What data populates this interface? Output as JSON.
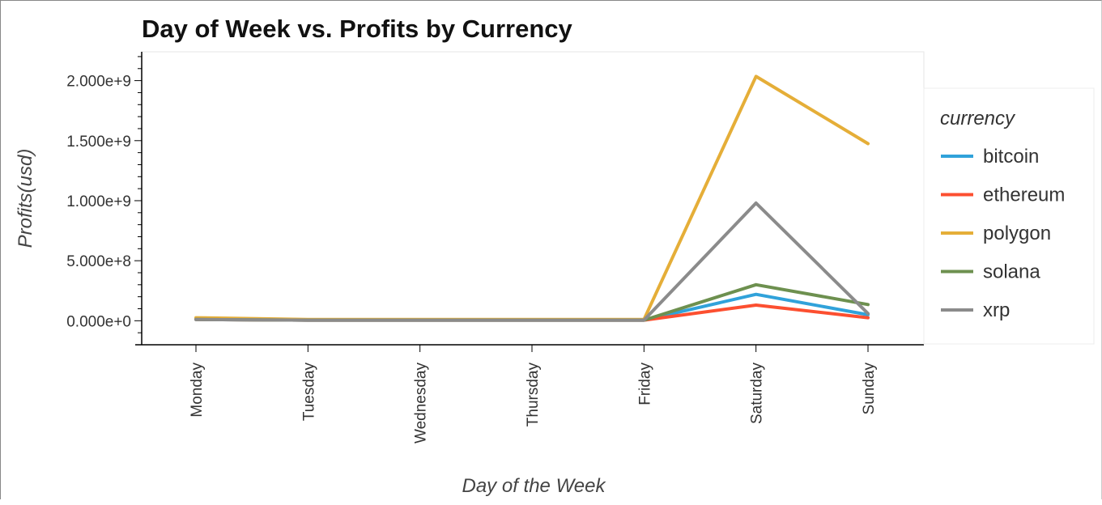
{
  "chart_data": {
    "type": "line",
    "title": "Day of Week vs. Profits by Currency",
    "xlabel": "Day of the Week",
    "ylabel": "Profits(usd)",
    "categories": [
      "Monday",
      "Tuesday",
      "Wednesday",
      "Thursday",
      "Friday",
      "Saturday",
      "Sunday"
    ],
    "ylim": [
      -200000000,
      2240000000
    ],
    "yticks": [
      0,
      500000000,
      1000000000,
      1500000000,
      2000000000
    ],
    "ytick_labels": [
      "0.000e+0",
      "5.000e+8",
      "1.000e+9",
      "1.500e+9",
      "2.000e+9"
    ],
    "legend": {
      "title": "currency",
      "placement": "right"
    },
    "series": [
      {
        "name": "bitcoin",
        "color": "#30a2da",
        "values": [
          10000000,
          5000000,
          5000000,
          5000000,
          5000000,
          220000000,
          50000000
        ]
      },
      {
        "name": "ethereum",
        "color": "#fc4f30",
        "values": [
          10000000,
          5000000,
          5000000,
          5000000,
          5000000,
          130000000,
          25000000
        ]
      },
      {
        "name": "polygon",
        "color": "#e5ae38",
        "values": [
          25000000,
          10000000,
          10000000,
          10000000,
          10000000,
          2035000000,
          1475000000
        ]
      },
      {
        "name": "solana",
        "color": "#6d904f",
        "values": [
          10000000,
          5000000,
          5000000,
          5000000,
          5000000,
          300000000,
          135000000
        ]
      },
      {
        "name": "xrp",
        "color": "#8b8b8b",
        "values": [
          10000000,
          5000000,
          5000000,
          5000000,
          5000000,
          980000000,
          60000000
        ]
      }
    ]
  }
}
